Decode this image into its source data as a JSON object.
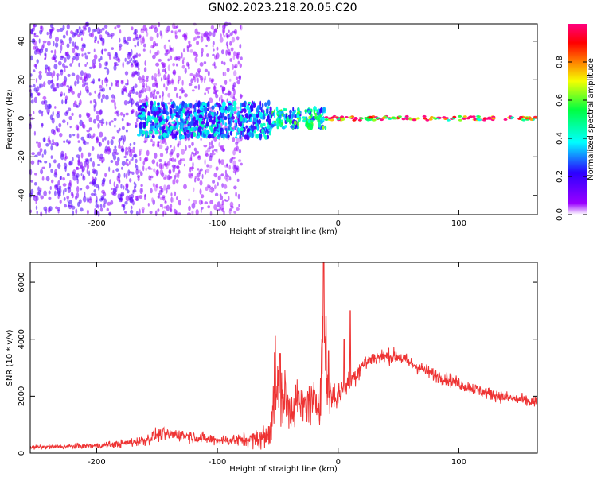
{
  "title": "GN02.2023.218.20.05.C20",
  "chart_data": [
    {
      "type": "heatmap",
      "xlabel": "Height of straight line (km)",
      "ylabel": "Frequency (Hz)",
      "xlim": [
        -255,
        165
      ],
      "ylim": [
        -50,
        49
      ],
      "x_ticks": [
        -200,
        -100,
        0,
        100
      ],
      "y_ticks": [
        -40,
        -20,
        0,
        20,
        40
      ],
      "grid": false,
      "colorbar": {
        "label": "Normalized spectral amplitude",
        "range": [
          0,
          1
        ],
        "ticks": [
          "0.0",
          "0.2",
          "0.4",
          "0.6",
          "0.8"
        ],
        "colors": [
          "#ffffff",
          "#9a00ff",
          "#2b00ff",
          "#00ffff",
          "#00ff40",
          "#f5ff00",
          "#ff8000",
          "#ff0000",
          "#ff0080"
        ]
      },
      "features": [
        {
          "x_range": [
            -255,
            -165
          ],
          "freq_range": [
            -50,
            49
          ],
          "amplitude": 0.15,
          "description": "broadband noise"
        },
        {
          "x_range": [
            -165,
            -80
          ],
          "freq_range": [
            -50,
            49
          ],
          "amplitude": 0.08,
          "description": "sparse broadband noise"
        },
        {
          "x_range": [
            -165,
            -55
          ],
          "freq_range": [
            -10,
            8
          ],
          "amplitude": 0.35
        },
        {
          "x_range": [
            -55,
            -10
          ],
          "freq_range": [
            -5,
            5
          ],
          "amplitude": 0.5
        },
        {
          "x_range": [
            -10,
            165
          ],
          "freq_range": [
            -1,
            1
          ],
          "amplitude": 0.95
        }
      ]
    },
    {
      "type": "line",
      "xlabel": "Height of straight line (km)",
      "ylabel": "SNR (10 * v/v)",
      "xlim": [
        -255,
        165
      ],
      "ylim": [
        0,
        6700
      ],
      "x_ticks": [
        -200,
        -100,
        0,
        100
      ],
      "y_ticks": [
        0,
        2000,
        4000,
        6000
      ],
      "color": "#ee3333",
      "grid": false,
      "series": [
        {
          "x": [
            -255,
            -230,
            -200,
            -180,
            -160,
            -150,
            -130,
            -110,
            -90,
            -70,
            -58,
            -55,
            -52,
            -48,
            -45,
            -40,
            -35,
            -30,
            -25,
            -20,
            -15,
            -12,
            -10,
            -8,
            -5,
            0,
            5,
            10,
            15,
            20,
            25,
            30,
            40,
            50,
            60,
            80,
            100,
            120,
            140,
            165
          ],
          "y": [
            200,
            230,
            260,
            330,
            450,
            650,
            650,
            500,
            450,
            480,
            600,
            1400,
            2400,
            1800,
            2000,
            1500,
            1900,
            1600,
            1800,
            1700,
            1900,
            5000,
            2100,
            2200,
            2000,
            2000,
            2350,
            2500,
            2800,
            3100,
            3250,
            3350,
            3400,
            3400,
            3150,
            2750,
            2450,
            2150,
            1950,
            1750
          ],
          "noise": [
            60,
            70,
            80,
            110,
            160,
            200,
            180,
            160,
            150,
            250,
            500,
            900,
            1000,
            900,
            900,
            700,
            700,
            600,
            650,
            650,
            700,
            1200,
            800,
            700,
            500,
            400,
            350,
            300,
            300,
            280,
            250,
            230,
            220,
            220,
            210,
            200,
            190,
            180,
            180,
            180
          ],
          "spikes": [
            [
              -52,
              4100
            ],
            [
              -48,
              3500
            ],
            [
              -12,
              6700
            ],
            [
              -10,
              4800
            ],
            [
              -8,
              3600
            ],
            [
              10,
              5000
            ],
            [
              5,
              4000
            ]
          ]
        }
      ]
    }
  ]
}
